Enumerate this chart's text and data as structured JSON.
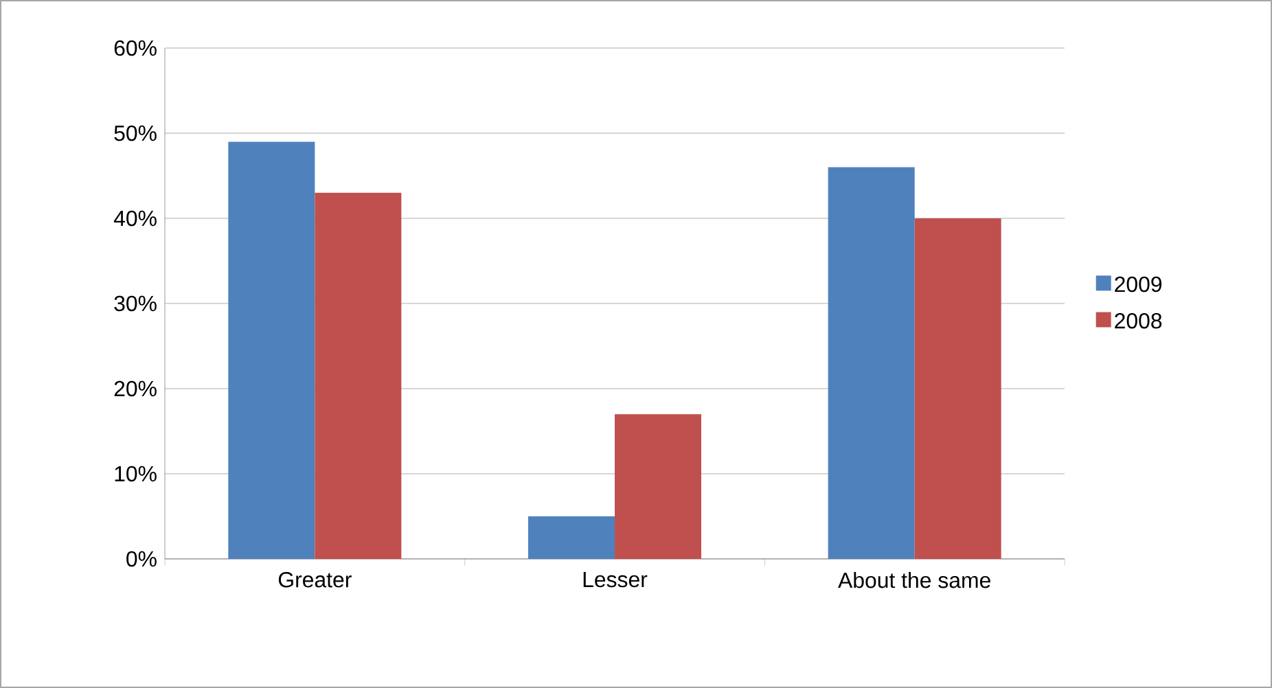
{
  "chart_data": {
    "type": "bar",
    "categories": [
      "Greater",
      "Lesser",
      "About the same"
    ],
    "series": [
      {
        "name": "2009",
        "color": "#4f81bd",
        "values": [
          49,
          5,
          46
        ]
      },
      {
        "name": "2008",
        "color": "#c0504d",
        "values": [
          43,
          17,
          40
        ]
      }
    ],
    "ylim": [
      0,
      60
    ],
    "yticks": [
      {
        "value": 0,
        "label": "0%"
      },
      {
        "value": 10,
        "label": "10%"
      },
      {
        "value": 20,
        "label": "20%"
      },
      {
        "value": 30,
        "label": "30%"
      },
      {
        "value": 40,
        "label": "40%"
      },
      {
        "value": 50,
        "label": "50%"
      },
      {
        "value": 60,
        "label": "60%"
      }
    ],
    "grid": "y",
    "legend": "right"
  }
}
